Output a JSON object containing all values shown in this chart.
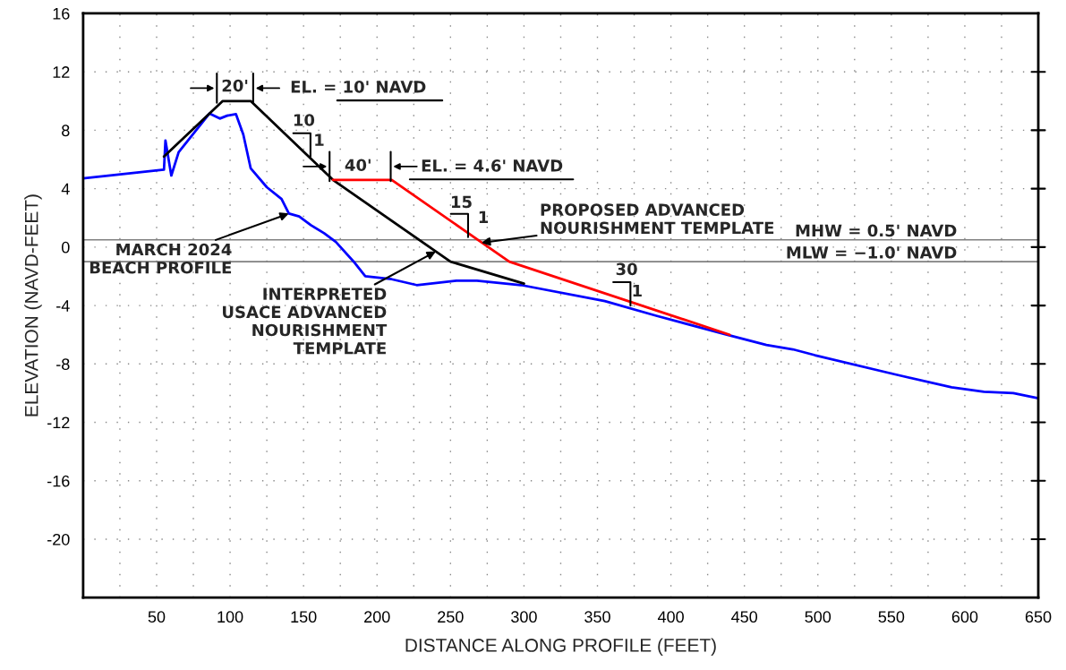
{
  "chart_data": {
    "type": "line",
    "xlabel": "DISTANCE ALONG PROFILE (FEET)",
    "ylabel": "ELEVATION (NAVD-FEET)",
    "xlim": [
      0,
      650
    ],
    "ylim": [
      -24,
      16
    ],
    "xticks": [
      {
        "value": 25,
        "label": null
      },
      50,
      {
        "value": 75,
        "label": null
      },
      100,
      {
        "value": 125,
        "label": null
      },
      150,
      {
        "value": 175,
        "label": null
      },
      200,
      {
        "value": 225,
        "label": null
      },
      250,
      {
        "value": 275,
        "label": null
      },
      300,
      {
        "value": 325,
        "label": null
      },
      350,
      {
        "value": 375,
        "label": null
      },
      400,
      {
        "value": 425,
        "label": null
      },
      450,
      {
        "value": 475,
        "label": null
      },
      500,
      {
        "value": 525,
        "label": null
      },
      550,
      {
        "value": 575,
        "label": null
      },
      600,
      {
        "value": 625,
        "label": null
      },
      650
    ],
    "yticks": [
      -20,
      -16,
      -12,
      -8,
      -4,
      0,
      4,
      8,
      12,
      16
    ],
    "grid": true,
    "line_style": "solid",
    "marker": "none",
    "series": [
      {
        "color": "#0000ff",
        "x": [
          0,
          55,
          56,
          60,
          65,
          86,
          93,
          98,
          104,
          109,
          114,
          125,
          135,
          140,
          147,
          155,
          164,
          172,
          185,
          192,
          210,
          227,
          254,
          268,
          298,
          355,
          390,
          438,
          465,
          483,
          498,
          552,
          591,
          613,
          633,
          650
        ],
        "values": [
          4.7,
          5.3,
          7.3,
          4.9,
          6.5,
          9.15,
          8.8,
          9.0,
          9.1,
          7.7,
          5.4,
          4.1,
          3.3,
          2.3,
          2.1,
          1.5,
          0.95,
          0.35,
          -1.1,
          -2.0,
          -2.2,
          -2.6,
          -2.3,
          -2.3,
          -2.6,
          -3.7,
          -4.7,
          -6.0,
          -6.7,
          -7.0,
          -7.4,
          -8.7,
          -9.6,
          -9.9,
          -10.0,
          -10.35
        ]
      },
      {
        "color": "#000000",
        "x": [
          55,
          95,
          114,
          170,
          250,
          300
        ],
        "values": [
          6.2,
          10,
          10,
          4.6,
          -1.0,
          -2.5
        ]
      },
      {
        "color": "#ff0000",
        "x": [
          170,
          210,
          290,
          440
        ],
        "values": [
          4.6,
          4.6,
          -1.0,
          -6.0
        ]
      }
    ],
    "ref_lines": [
      {
        "axis": "y",
        "value": 0.5,
        "label": "MHW = 0.5' NAVD",
        "color": "#808080"
      },
      {
        "axis": "y",
        "value": -1.0,
        "label": "MLW = −1.0' NAVD",
        "color": "#808080"
      }
    ],
    "annotations": [
      {
        "text": "MARCH 2024\nBEACH PROFILE",
        "x": 140,
        "y": 2.3
      },
      {
        "text": "INTERPRETED\nUSACE ADVANCED\nNOURISHMENT\nTEMPLATE",
        "x": 240,
        "y": -0.3
      },
      {
        "text": "PROPOSED ADVANCED\nNOURISHMENT TEMPLATE",
        "x": 271,
        "y": 0.3
      },
      "20'",
      "EL. = 10' NAVD",
      "10",
      "1",
      "40'",
      "EL. = 4.6' NAVD",
      "15",
      "1",
      "30",
      "1"
    ]
  }
}
